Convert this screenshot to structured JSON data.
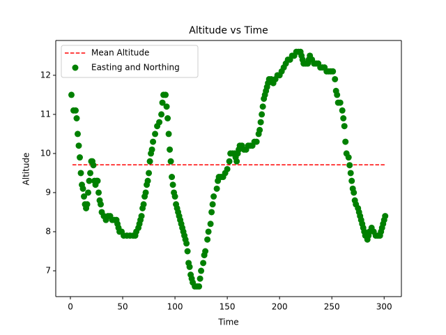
{
  "chart_data": {
    "type": "scatter",
    "title": "Altitude vs Time",
    "x_label": "Time",
    "y_label": "Altitude",
    "xlim": [
      -14,
      316.5
    ],
    "ylim": [
      6.34,
      12.89
    ],
    "xticks": [
      0,
      50,
      100,
      150,
      200,
      250,
      300
    ],
    "yticks": [
      7,
      8,
      9,
      10,
      11,
      12
    ],
    "legend": "upper left",
    "series": [
      {
        "name": "Mean Altitude",
        "type": "line",
        "linestyle": "dashed",
        "color": "#ff0000",
        "x": [
          2,
          302
        ],
        "values": [
          9.71,
          9.71
        ]
      },
      {
        "name": "Easting and Northing",
        "type": "scatter",
        "color": "#008000",
        "x": [
          1,
          3,
          5,
          6,
          7,
          8,
          9,
          10,
          11,
          12,
          13,
          14,
          15,
          16,
          17,
          18,
          19,
          20,
          21,
          22,
          23,
          24,
          25,
          26,
          27,
          28,
          29,
          30,
          32,
          34,
          36,
          38,
          40,
          42,
          44,
          45,
          46,
          47,
          49,
          51,
          54,
          57,
          60,
          62,
          63,
          65,
          66,
          67,
          68,
          69,
          70,
          71,
          72,
          73,
          74,
          75,
          76,
          77,
          78,
          79,
          81,
          83,
          85,
          87,
          88,
          89,
          91,
          92,
          93,
          94,
          95,
          96,
          97,
          98,
          99,
          100,
          101,
          102,
          103,
          104,
          105,
          106,
          107,
          108,
          109,
          110,
          111,
          112,
          113,
          114,
          115,
          116,
          117,
          119,
          121,
          123,
          124,
          125,
          127,
          128,
          129,
          131,
          132,
          134,
          135,
          136,
          137,
          140,
          141,
          142,
          144,
          146,
          148,
          150,
          152,
          153,
          155,
          157,
          158,
          159,
          160,
          161,
          162,
          164,
          166,
          168,
          170,
          172,
          174,
          176,
          178,
          180,
          181,
          182,
          183,
          184,
          185,
          186,
          187,
          188,
          189,
          190,
          192,
          194,
          196,
          198,
          200,
          202,
          204,
          206,
          208,
          210,
          212,
          214,
          216,
          218,
          220,
          221,
          222,
          223,
          225,
          227,
          228,
          229,
          231,
          233,
          235,
          237,
          239,
          241,
          243,
          245,
          247,
          249,
          251,
          253,
          254,
          255,
          256,
          258,
          260,
          261,
          262,
          263,
          264,
          266,
          267,
          268,
          269,
          270,
          271,
          272,
          273,
          275,
          276,
          277,
          278,
          279,
          280,
          281,
          282,
          284,
          285,
          286,
          288,
          290,
          292,
          294,
          296,
          297,
          298,
          299,
          300,
          301
        ],
        "values": [
          11.5,
          11.1,
          11.1,
          10.9,
          10.5,
          10.2,
          9.9,
          9.5,
          9.2,
          9.1,
          8.9,
          8.7,
          8.6,
          8.7,
          9.0,
          9.3,
          9.5,
          9.8,
          9.8,
          9.7,
          9.3,
          9.2,
          9.3,
          9.3,
          9.0,
          8.8,
          8.7,
          8.5,
          8.4,
          8.3,
          8.4,
          8.4,
          8.3,
          8.3,
          8.3,
          8.2,
          8.1,
          8.0,
          8.0,
          7.9,
          7.9,
          7.9,
          7.9,
          7.9,
          8.0,
          8.1,
          8.2,
          8.3,
          8.4,
          8.6,
          8.7,
          8.9,
          9.0,
          9.2,
          9.3,
          9.5,
          9.8,
          10.0,
          10.1,
          10.3,
          10.5,
          10.7,
          10.8,
          11.0,
          11.3,
          11.5,
          11.5,
          11.2,
          10.9,
          10.5,
          10.1,
          9.8,
          9.4,
          9.2,
          9.0,
          8.9,
          8.7,
          8.6,
          8.5,
          8.4,
          8.3,
          8.2,
          8.1,
          8.0,
          7.9,
          7.8,
          7.7,
          7.5,
          7.2,
          7.1,
          6.9,
          6.8,
          6.7,
          6.6,
          6.6,
          6.6,
          6.8,
          7.0,
          7.2,
          7.4,
          7.5,
          7.8,
          8.0,
          8.2,
          8.5,
          8.7,
          8.9,
          9.1,
          9.3,
          9.4,
          9.4,
          9.4,
          9.5,
          9.6,
          9.8,
          10.0,
          10.0,
          10.0,
          9.9,
          9.8,
          10.0,
          10.1,
          10.2,
          10.2,
          10.1,
          10.1,
          10.2,
          10.2,
          10.2,
          10.3,
          10.3,
          10.5,
          10.6,
          10.8,
          11.0,
          11.2,
          11.4,
          11.5,
          11.6,
          11.7,
          11.8,
          11.9,
          11.9,
          11.8,
          11.9,
          12.0,
          12.0,
          12.1,
          12.2,
          12.3,
          12.4,
          12.4,
          12.5,
          12.5,
          12.6,
          12.6,
          12.6,
          12.5,
          12.4,
          12.3,
          12.3,
          12.3,
          12.4,
          12.5,
          12.4,
          12.3,
          12.3,
          12.3,
          12.2,
          12.2,
          12.2,
          12.1,
          12.1,
          12.1,
          12.1,
          11.9,
          11.6,
          11.5,
          11.3,
          11.3,
          11.1,
          10.9,
          10.7,
          10.3,
          10.0,
          9.9,
          9.7,
          9.5,
          9.3,
          9.1,
          9.0,
          8.8,
          8.7,
          8.6,
          8.5,
          8.4,
          8.3,
          8.2,
          8.1,
          8.0,
          7.9,
          7.8,
          7.9,
          8.0,
          8.1,
          8.0,
          7.9,
          7.9,
          7.9,
          8.0,
          8.1,
          8.2,
          8.3,
          8.4
        ]
      }
    ]
  }
}
